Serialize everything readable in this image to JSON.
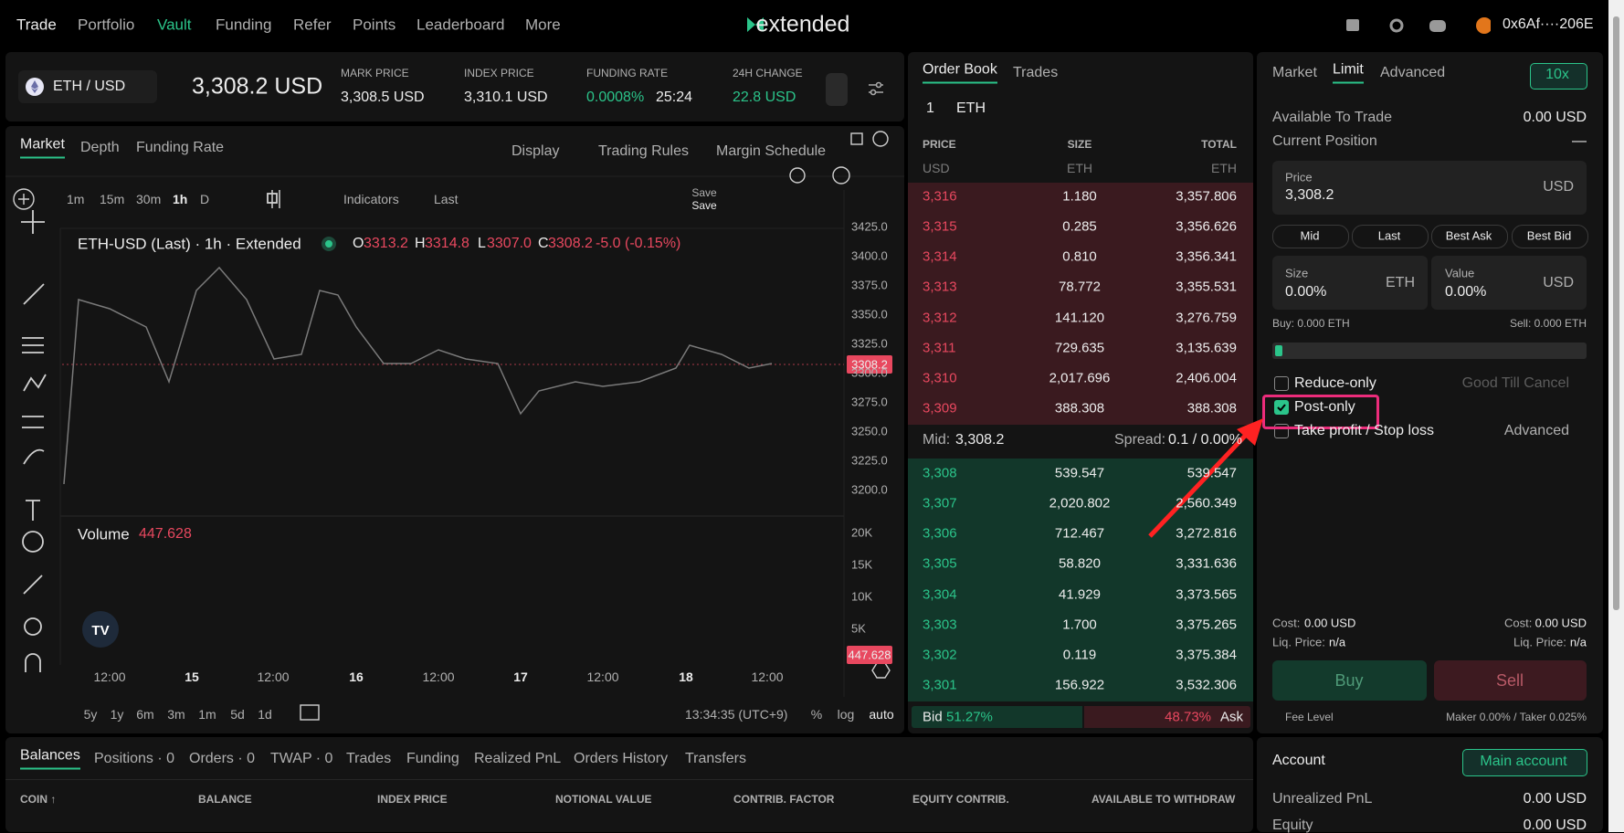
{
  "nav": {
    "items": [
      "Trade",
      "Portfolio",
      "Vault",
      "Funding",
      "Refer",
      "Points",
      "Leaderboard",
      "More"
    ],
    "logo": "extended",
    "wallet": "0x6Af····206E"
  },
  "ticker": {
    "pair": "ETH / USD",
    "price": "3,308.2 USD",
    "stats": [
      {
        "label": "MARK PRICE",
        "value": "3,308.5 USD"
      },
      {
        "label": "INDEX PRICE",
        "value": "3,310.1 USD"
      },
      {
        "label": "FUNDING RATE",
        "value": "0.0008%",
        "extra": "25:24"
      },
      {
        "label": "24H CHANGE",
        "value": "22.8 USD"
      }
    ]
  },
  "chart": {
    "tabs": [
      "Market",
      "Depth",
      "Funding Rate"
    ],
    "tools": [
      "Display",
      "Trading Rules",
      "Margin Schedule"
    ],
    "intervals": [
      "1m",
      "15m",
      "30m",
      "1h",
      "D"
    ],
    "indicators": "Indicators",
    "last": "Last",
    "save": [
      "Save",
      "Save"
    ],
    "legend": {
      "title": "ETH-USD (Last) · 1h · Extended",
      "items": [
        {
          "key": "O",
          "value": "3313.2"
        },
        {
          "key": "H",
          "value": "3314.8"
        },
        {
          "key": "L",
          "value": "3307.0"
        },
        {
          "key": "C",
          "value": "3308.2"
        }
      ],
      "change": "-5.0 (-0.15%)"
    },
    "price_axis": [
      "3425.0",
      "3400.0",
      "3375.0",
      "3350.0",
      "3325.0",
      "3300.0",
      "3275.0",
      "3250.0",
      "3225.0",
      "3200.0"
    ],
    "current_price": "3308.2",
    "volume_label": "Volume",
    "volume_value": "447.628",
    "volume_axis": [
      "20K",
      "15K",
      "10K",
      "5K"
    ],
    "time_axis": [
      "12:00",
      "15",
      "12:00",
      "16",
      "12:00",
      "17",
      "12:00",
      "18",
      "12:00"
    ],
    "ranges": [
      "5y",
      "1y",
      "6m",
      "3m",
      "1m",
      "5d",
      "1d"
    ],
    "clock": "13:34:35 (UTC+9)",
    "scale_opts": [
      "%",
      "log",
      "auto"
    ]
  },
  "order_book": {
    "tabs": [
      "Order Book",
      "Trades"
    ],
    "size_step": "1",
    "asset": "ETH",
    "headers": [
      "PRICE",
      "SIZE",
      "TOTAL"
    ],
    "units": [
      "USD",
      "ETH",
      "ETH"
    ],
    "asks": [
      [
        "3,316",
        "1.180",
        "3,357.806"
      ],
      [
        "3,315",
        "0.285",
        "3,356.626"
      ],
      [
        "3,314",
        "0.810",
        "3,356.341"
      ],
      [
        "3,313",
        "78.772",
        "3,355.531"
      ],
      [
        "3,312",
        "141.120",
        "3,276.759"
      ],
      [
        "3,311",
        "729.635",
        "3,135.639"
      ],
      [
        "3,310",
        "2,017.696",
        "2,406.004"
      ],
      [
        "3,309",
        "388.308",
        "388.308"
      ]
    ],
    "mid_label": "Mid:",
    "mid": "3,308.2",
    "spread_label": "Spread:",
    "spread": "0.1 / 0.00%",
    "bids": [
      [
        "3,308",
        "539.547",
        "539.547"
      ],
      [
        "3,307",
        "2,020.802",
        "2,560.349"
      ],
      [
        "3,306",
        "712.467",
        "3,272.816"
      ],
      [
        "3,305",
        "58.820",
        "3,331.636"
      ],
      [
        "3,304",
        "41.929",
        "3,373.565"
      ],
      [
        "3,303",
        "1.700",
        "3,375.265"
      ],
      [
        "3,302",
        "0.119",
        "3,375.384"
      ],
      [
        "3,301",
        "156.922",
        "3,532.306"
      ]
    ],
    "bid_label": "Bid",
    "bid_pct": "51.27%",
    "ask_pct": "48.73%",
    "ask_label": "Ask"
  },
  "order_form": {
    "tabs": [
      "Market",
      "Limit",
      "Advanced"
    ],
    "leverage": "10x",
    "available_label": "Available To Trade",
    "available": "0.00 USD",
    "position_label": "Current Position",
    "position": "—",
    "price_label": "Price",
    "price": "3,308.2",
    "price_unit": "USD",
    "quick": [
      "Mid",
      "Last",
      "Best Ask",
      "Best Bid"
    ],
    "size_label": "Size",
    "size": "0.00%",
    "size_unit": "ETH",
    "value_label": "Value",
    "value": "0.00%",
    "value_unit": "USD",
    "buy_info": "Buy: 0.000 ETH",
    "sell_info": "Sell: 0.000 ETH",
    "reduce_only": "Reduce-only",
    "tif": "Good Till Cancel",
    "post_only": "Post-only",
    "tpsl": "Take profit / Stop loss",
    "tpsl_mode": "Advanced",
    "cost_label": "Cost:",
    "buy_cost": "0.00 USD",
    "sell_cost": "0.00 USD",
    "liq_label": "Liq. Price:",
    "buy_liq": "n/a",
    "sell_liq": "n/a",
    "buy": "Buy",
    "sell": "Sell",
    "fee_level": "Fee Level",
    "fees": "Maker 0.00% / Taker 0.025%"
  },
  "bottom": {
    "tabs": [
      "Balances",
      "Positions · 0",
      "Orders · 0",
      "TWAP · 0",
      "Trades",
      "Funding",
      "Realized PnL",
      "Orders History",
      "Transfers"
    ],
    "columns": [
      "COIN ↑",
      "BALANCE",
      "INDEX PRICE",
      "NOTIONAL VALUE",
      "CONTRIB. FACTOR",
      "EQUITY CONTRIB.",
      "AVAILABLE TO WITHDRAW"
    ]
  },
  "account": {
    "title": "Account",
    "selector": "Main account",
    "unrealized_label": "Unrealized PnL",
    "unrealized": "0.00 USD",
    "equity_label": "Equity",
    "equity": "0.00 USD"
  }
}
